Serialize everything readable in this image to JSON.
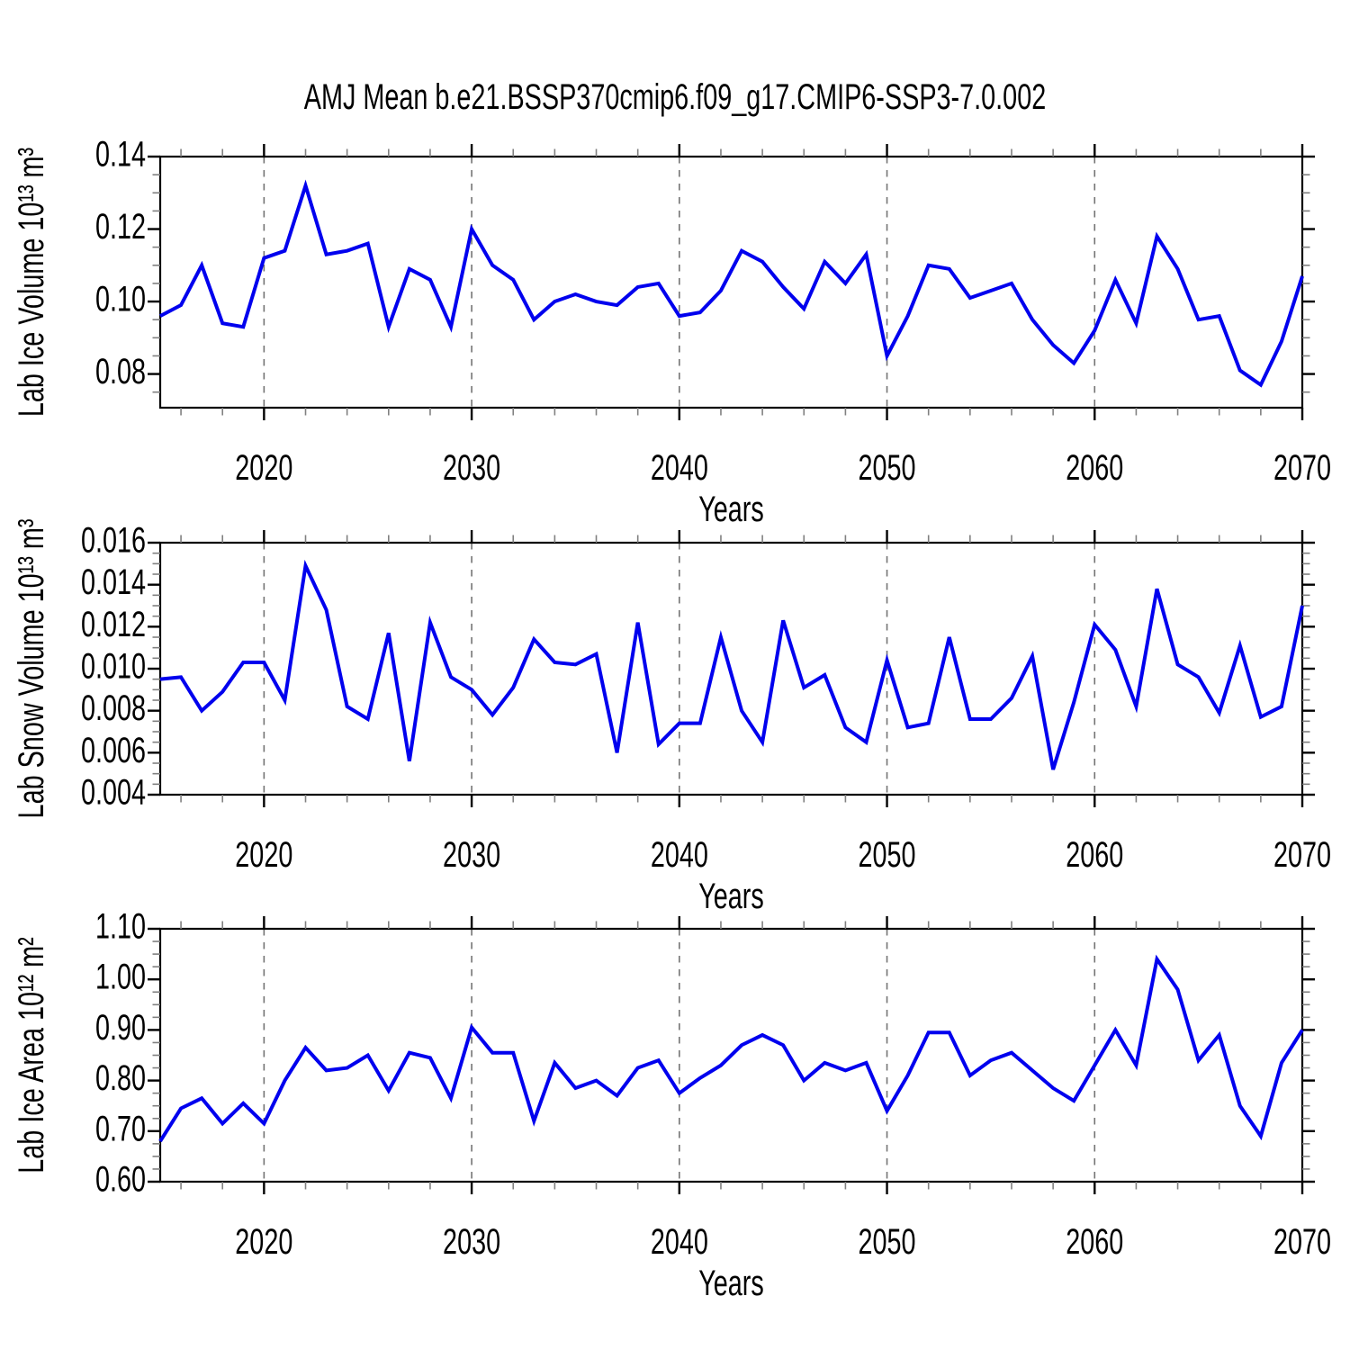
{
  "title": "AMJ Mean b.e21.BSSP370cmip6.f09_g17.CMIP6-SSP3-7.0.002",
  "colors": {
    "line": "#0000EE",
    "axis": "#000000",
    "major_tick": "#000000",
    "minor_tick": "#808080",
    "gridline": "#747474",
    "background": "#FFFFFF"
  },
  "xaxis": {
    "label": "Years",
    "min": 2015,
    "max": 2070,
    "major_ticks": [
      2020,
      2030,
      2040,
      2050,
      2060,
      2070
    ],
    "minor_step_years": 2,
    "gridlines": [
      2020,
      2030,
      2040,
      2050,
      2060
    ]
  },
  "years": [
    2015,
    2016,
    2017,
    2018,
    2019,
    2020,
    2021,
    2022,
    2023,
    2024,
    2025,
    2026,
    2027,
    2028,
    2029,
    2030,
    2031,
    2032,
    2033,
    2034,
    2035,
    2036,
    2037,
    2038,
    2039,
    2040,
    2041,
    2042,
    2043,
    2044,
    2045,
    2046,
    2047,
    2048,
    2049,
    2050,
    2051,
    2052,
    2053,
    2054,
    2055,
    2056,
    2057,
    2058,
    2059,
    2060,
    2061,
    2062,
    2063,
    2064,
    2065,
    2066,
    2067,
    2068,
    2069,
    2070
  ],
  "chart_data": [
    {
      "type": "line",
      "name": "ice-volume",
      "title": "AMJ Mean b.e21.BSSP370cmip6.f09_g17.CMIP6-SSP3-7.0.002",
      "xlabel": "Years",
      "ylabel": "Lab Ice Volume 10¹³ m³",
      "ylim": [
        0.0707,
        0.14
      ],
      "ytick_values": [
        0.08,
        0.1,
        0.12,
        0.14
      ],
      "ytick_labels": [
        "0.08",
        "0.10",
        "0.12",
        "0.14"
      ],
      "yminor_step": 0.005,
      "legend": "none",
      "grid": "vertical-dashed-at-decades",
      "values": [
        0.096,
        0.099,
        0.11,
        0.094,
        0.093,
        0.112,
        0.114,
        0.132,
        0.113,
        0.114,
        0.116,
        0.093,
        0.109,
        0.106,
        0.093,
        0.12,
        0.11,
        0.106,
        0.095,
        0.1,
        0.102,
        0.1,
        0.099,
        0.104,
        0.105,
        0.096,
        0.097,
        0.103,
        0.114,
        0.111,
        0.104,
        0.098,
        0.111,
        0.105,
        0.113,
        0.085,
        0.096,
        0.11,
        0.109,
        0.101,
        0.103,
        0.105,
        0.095,
        0.088,
        0.083,
        0.092,
        0.106,
        0.094,
        0.118,
        0.109,
        0.095,
        0.096,
        0.081,
        0.077,
        0.089,
        0.107
      ]
    },
    {
      "type": "line",
      "name": "snow-volume",
      "title": "",
      "xlabel": "Years",
      "ylabel": "Lab Snow Volume 10¹³ m³",
      "ylim": [
        0.004,
        0.016
      ],
      "ytick_values": [
        0.004,
        0.006,
        0.008,
        0.01,
        0.012,
        0.014,
        0.016
      ],
      "ytick_labels": [
        "0.004",
        "0.006",
        "0.008",
        "0.010",
        "0.012",
        "0.014",
        "0.016"
      ],
      "yminor_step": 0.0005,
      "legend": "none",
      "grid": "vertical-dashed-at-decades",
      "values": [
        0.0095,
        0.0096,
        0.008,
        0.0089,
        0.0103,
        0.0103,
        0.0085,
        0.0149,
        0.0128,
        0.0082,
        0.0076,
        0.0117,
        0.0056,
        0.0122,
        0.0096,
        0.009,
        0.0078,
        0.0091,
        0.0114,
        0.0103,
        0.0102,
        0.0107,
        0.006,
        0.0122,
        0.0064,
        0.0074,
        0.0074,
        0.0115,
        0.008,
        0.0065,
        0.0123,
        0.0091,
        0.0097,
        0.0072,
        0.0065,
        0.0104,
        0.0072,
        0.0074,
        0.0115,
        0.0076,
        0.0076,
        0.0086,
        0.0106,
        0.0052,
        0.0084,
        0.0121,
        0.0109,
        0.0082,
        0.0138,
        0.0102,
        0.0096,
        0.0079,
        0.0111,
        0.0077,
        0.0082,
        0.013
      ]
    },
    {
      "type": "line",
      "name": "ice-area",
      "title": "",
      "xlabel": "Years",
      "ylabel": "Lab Ice Area 10¹² m²",
      "ylim": [
        0.6,
        1.1
      ],
      "ytick_values": [
        0.6,
        0.7,
        0.8,
        0.9,
        1.0,
        1.1
      ],
      "ytick_labels": [
        "0.60",
        "0.70",
        "0.80",
        "0.90",
        "1.00",
        "1.10"
      ],
      "yminor_step": 0.025,
      "legend": "none",
      "grid": "vertical-dashed-at-decades",
      "values": [
        0.68,
        0.745,
        0.765,
        0.715,
        0.755,
        0.715,
        0.8,
        0.865,
        0.82,
        0.825,
        0.85,
        0.78,
        0.855,
        0.845,
        0.765,
        0.905,
        0.855,
        0.855,
        0.72,
        0.835,
        0.785,
        0.8,
        0.77,
        0.825,
        0.84,
        0.775,
        0.805,
        0.83,
        0.87,
        0.89,
        0.87,
        0.8,
        0.835,
        0.82,
        0.835,
        0.74,
        0.81,
        0.895,
        0.895,
        0.81,
        0.84,
        0.855,
        0.82,
        0.785,
        0.76,
        0.83,
        0.9,
        0.83,
        1.04,
        0.98,
        0.84,
        0.89,
        0.75,
        0.69,
        0.835,
        0.9
      ]
    }
  ]
}
